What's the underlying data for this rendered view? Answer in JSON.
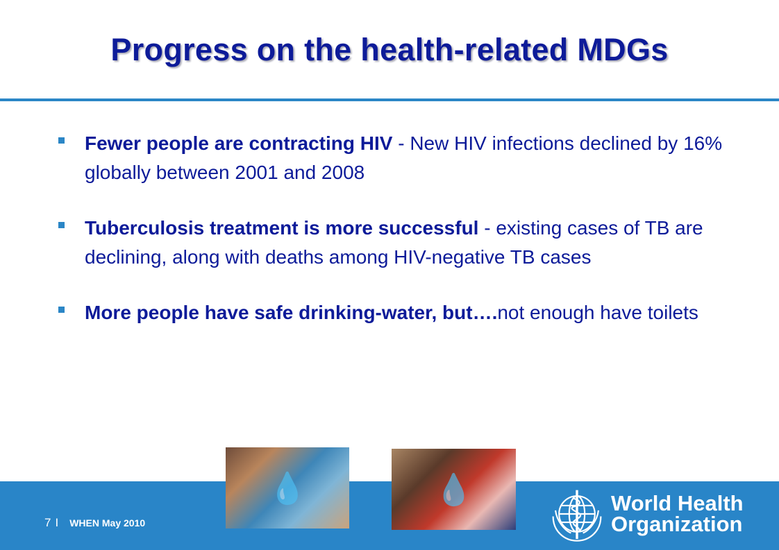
{
  "slide": {
    "title": "Progress on the health-related MDGs",
    "bullets": [
      {
        "bold": "Fewer people are contracting HIV",
        "rest": " - New HIV infections declined by 16% globally between 2001 and 2008"
      },
      {
        "bold": "Tuberculosis treatment is more successful",
        "rest": " - existing cases of TB are declining, along with deaths among HIV-negative TB cases"
      },
      {
        "bold": "More people have safe drinking-water, but….",
        "rest": "not enough have toilets"
      }
    ],
    "footer": {
      "page_number": "7",
      "separator": "I",
      "event": "WHEN May 2010"
    },
    "logo": {
      "line1": "World Health",
      "line2": "Organization",
      "icon": "who-emblem-icon"
    },
    "photos": [
      {
        "icon": "photo-child-drinking-water"
      },
      {
        "icon": "photo-girl-drinking-water"
      }
    ],
    "colors": {
      "title_text": "#0d1b99",
      "accent_blue": "#2985c8",
      "bullet_marker": "#2b86c6",
      "footer_text": "#ffffff"
    }
  }
}
